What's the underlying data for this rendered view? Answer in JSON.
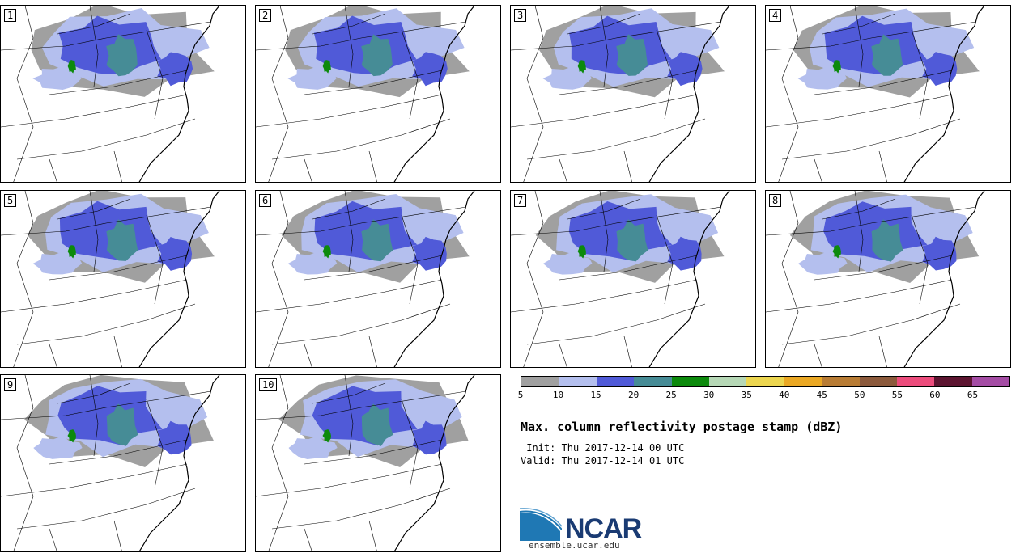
{
  "panels": [
    {
      "label": "1",
      "grid": [
        1,
        1
      ]
    },
    {
      "label": "2",
      "grid": [
        2,
        1
      ]
    },
    {
      "label": "3",
      "grid": [
        3,
        1
      ]
    },
    {
      "label": "4",
      "grid": [
        4,
        1
      ]
    },
    {
      "label": "5",
      "grid": [
        1,
        2
      ]
    },
    {
      "label": "6",
      "grid": [
        2,
        2
      ]
    },
    {
      "label": "7",
      "grid": [
        3,
        2
      ]
    },
    {
      "label": "8",
      "grid": [
        4,
        2
      ]
    },
    {
      "label": "9",
      "grid": [
        1,
        3
      ]
    },
    {
      "label": "10",
      "grid": [
        2,
        3
      ]
    }
  ],
  "colorbar": {
    "colors": [
      "#a0a0a0",
      "#b4bfee",
      "#505ad8",
      "#468c96",
      "#0c8a0c",
      "#b6d8b6",
      "#ecd650",
      "#eaa824",
      "#b87c34",
      "#8c5a3c",
      "#ec4c7c",
      "#5c1430",
      "#a44ca4"
    ],
    "ticks": [
      "5",
      "10",
      "15",
      "20",
      "25",
      "30",
      "35",
      "40",
      "45",
      "50",
      "55",
      "60",
      "65"
    ]
  },
  "title": "Max. column reflectivity postage stamp (dBZ)",
  "init_line": " Init: Thu 2017-12-14 00 UTC",
  "valid_line": "Valid: Thu 2017-12-14 01 UTC",
  "logo": {
    "text": "NCAR",
    "url": "ensemble.ucar.edu",
    "icon": "ncar-swoosh-logo",
    "colors": [
      "#1a3b73",
      "#1f78b4"
    ]
  }
}
